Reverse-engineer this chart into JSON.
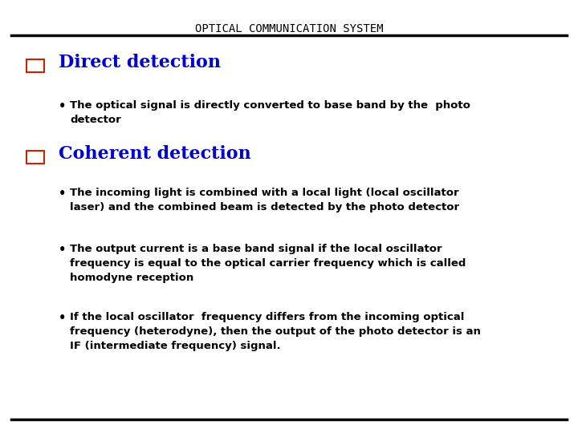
{
  "title": "OPTICAL COMMUNICATION SYSTEM",
  "background_color": "#ffffff",
  "title_color": "#000000",
  "title_fontsize": 10,
  "heading1": "Direct detection",
  "heading1_color": "#0000cc",
  "heading1_fontsize": 16,
  "heading2": "Coherent detection",
  "heading2_color": "#0000cc",
  "heading2_fontsize": 16,
  "bullet_color": "#000000",
  "bullet_fontsize": 9.5,
  "checkbox_color": "#cc2200",
  "bullet1": "The optical signal is directly converted to base band by the  photo\ndetector",
  "bullet2": "The incoming light is combined with a local light (local oscillator\nlaser) and the combined beam is detected by the photo detector",
  "bullet3": "The output current is a base band signal if the local oscillator\nfrequency is equal to the optical carrier frequency which is called\nhomodyne reception",
  "bullet4": "If the local oscillator  frequency differs from the incoming optical\nfrequency (heterodyne), then the output of the photo detector is an\nIF (intermediate frequency) signal."
}
